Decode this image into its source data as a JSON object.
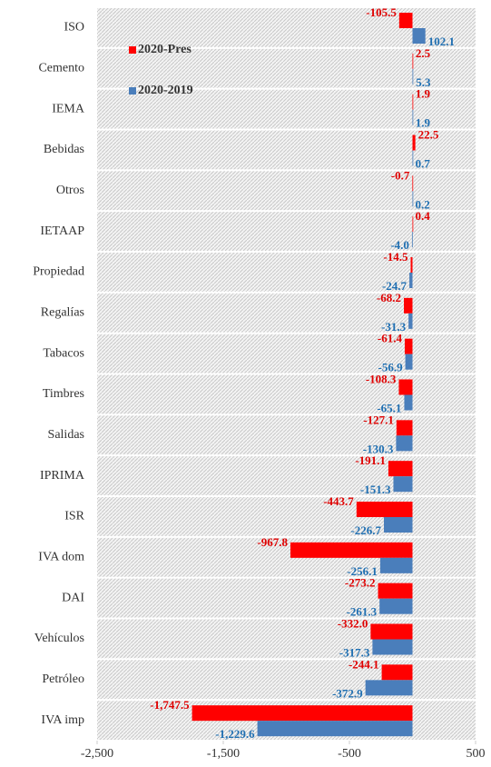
{
  "chart_data": {
    "type": "bar",
    "orientation": "horizontal",
    "categories": [
      "ISO",
      "Cemento",
      "IEMA",
      "Bebidas",
      "Otros",
      "IETAAP",
      "Propiedad",
      "Regalías",
      "Tabacos",
      "Timbres",
      "Salidas",
      "IPRIMA",
      "ISR",
      "IVA dom",
      "DAI",
      "Vehículos",
      "Petróleo",
      "IVA imp"
    ],
    "series": [
      {
        "name": "2020-Pres",
        "color": "#ff0000",
        "values": [
          -105.5,
          2.5,
          1.9,
          22.5,
          -0.7,
          0.4,
          -14.5,
          -68.2,
          -61.4,
          -108.3,
          -127.1,
          -191.1,
          -443.7,
          -967.8,
          -273.2,
          -332.0,
          -244.1,
          -1747.5
        ],
        "value_labels": [
          "-105.5",
          "2.5",
          "1.9",
          "22.5",
          "-0.7",
          "0.4",
          "-14.5",
          "-68.2",
          "-61.4",
          "-108.3",
          "-127.1",
          "-191.1",
          "-443.7",
          "-967.8",
          "-273.2",
          "-332.0",
          "-244.1",
          "-1,747.5"
        ]
      },
      {
        "name": "2020-2019",
        "color": "#4a7ebb",
        "values": [
          102.1,
          5.3,
          1.9,
          0.7,
          0.2,
          -4.0,
          -24.7,
          -31.3,
          -56.9,
          -65.1,
          -130.3,
          -151.3,
          -226.7,
          -256.1,
          -261.3,
          -317.3,
          -372.9,
          -1229.6
        ],
        "value_labels": [
          "102.1",
          "5.3",
          "1.9",
          "0.7",
          "0.2",
          "-4.0",
          "-24.7",
          "-31.3",
          "-56.9",
          "-65.1",
          "-130.3",
          "-151.3",
          "-226.7",
          "-256.1",
          "-261.3",
          "-317.3",
          "-372.9",
          "-1,229.6"
        ]
      }
    ],
    "label_colors": [
      "#e00000",
      "#1f6fb2"
    ],
    "xlim": [
      -2500,
      500
    ],
    "xticks": [
      {
        "value": -2500,
        "label": "-2,500"
      },
      {
        "value": -1500,
        "label": "-1,500"
      },
      -500,
      500
    ],
    "legend": "upper left"
  }
}
